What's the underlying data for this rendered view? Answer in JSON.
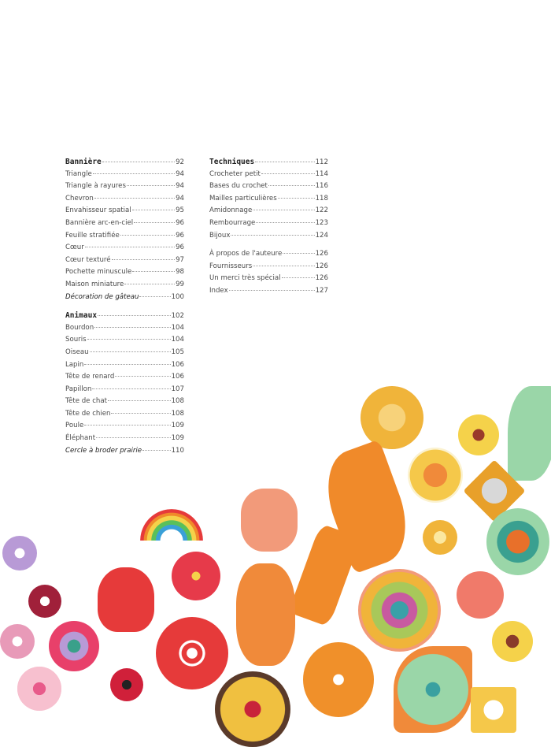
{
  "toc_left": [
    {
      "title": "Bannière",
      "page": "92",
      "style": "head"
    },
    {
      "title": "Triangle",
      "page": "94"
    },
    {
      "title": "Triangle à rayures",
      "page": "94"
    },
    {
      "title": "Chevron",
      "page": "94"
    },
    {
      "title": "Envahisseur spatial",
      "page": "95"
    },
    {
      "title": "Bannière arc-en-ciel",
      "page": "96"
    },
    {
      "title": "Feuille stratifiée",
      "page": "96"
    },
    {
      "title": "Cœur",
      "page": "96"
    },
    {
      "title": "Cœur texturé",
      "page": "97"
    },
    {
      "title": "Pochette minuscule",
      "page": "98"
    },
    {
      "title": "Maison miniature",
      "page": "99"
    },
    {
      "title": "Décoration de gâteau",
      "page": "100",
      "style": "em"
    },
    {
      "title": "Animaux",
      "page": "102",
      "style": "head"
    },
    {
      "title": "Bourdon",
      "page": "104"
    },
    {
      "title": "Souris",
      "page": "104"
    },
    {
      "title": "Oiseau",
      "page": "105"
    },
    {
      "title": "Lapin",
      "page": "106"
    },
    {
      "title": "Tête de renard",
      "page": "106"
    },
    {
      "title": "Papillon",
      "page": "107"
    },
    {
      "title": "Tête de chat",
      "page": "108"
    },
    {
      "title": "Tête de chien",
      "page": "108"
    },
    {
      "title": "Poule",
      "page": "109"
    },
    {
      "title": "Éléphant",
      "page": "109"
    },
    {
      "title": "Cercle à broder prairie",
      "page": "110",
      "style": "em"
    }
  ],
  "toc_right": [
    {
      "title": "Techniques",
      "page": "112",
      "style": "head"
    },
    {
      "title": "Crocheter petit",
      "page": "114"
    },
    {
      "title": "Bases du crochet",
      "page": "116"
    },
    {
      "title": "Mailles particulières",
      "page": "118"
    },
    {
      "title": "Amidonnage",
      "page": "122"
    },
    {
      "title": "Rembourrage",
      "page": "123"
    },
    {
      "title": "Bijoux",
      "page": "124"
    },
    {
      "title": "À propos de l'auteure",
      "page": "126"
    },
    {
      "title": "Fournisseurs",
      "page": "126"
    },
    {
      "title": "Un merci très spécial",
      "page": "126"
    },
    {
      "title": "Index",
      "page": "127"
    }
  ],
  "photo_palette": [
    "#e8a02a",
    "#f08a2a",
    "#e63a3a",
    "#c8233a",
    "#f29a7a",
    "#9ad6a8",
    "#f5d24a",
    "#b89ad6",
    "#e85a8a"
  ]
}
